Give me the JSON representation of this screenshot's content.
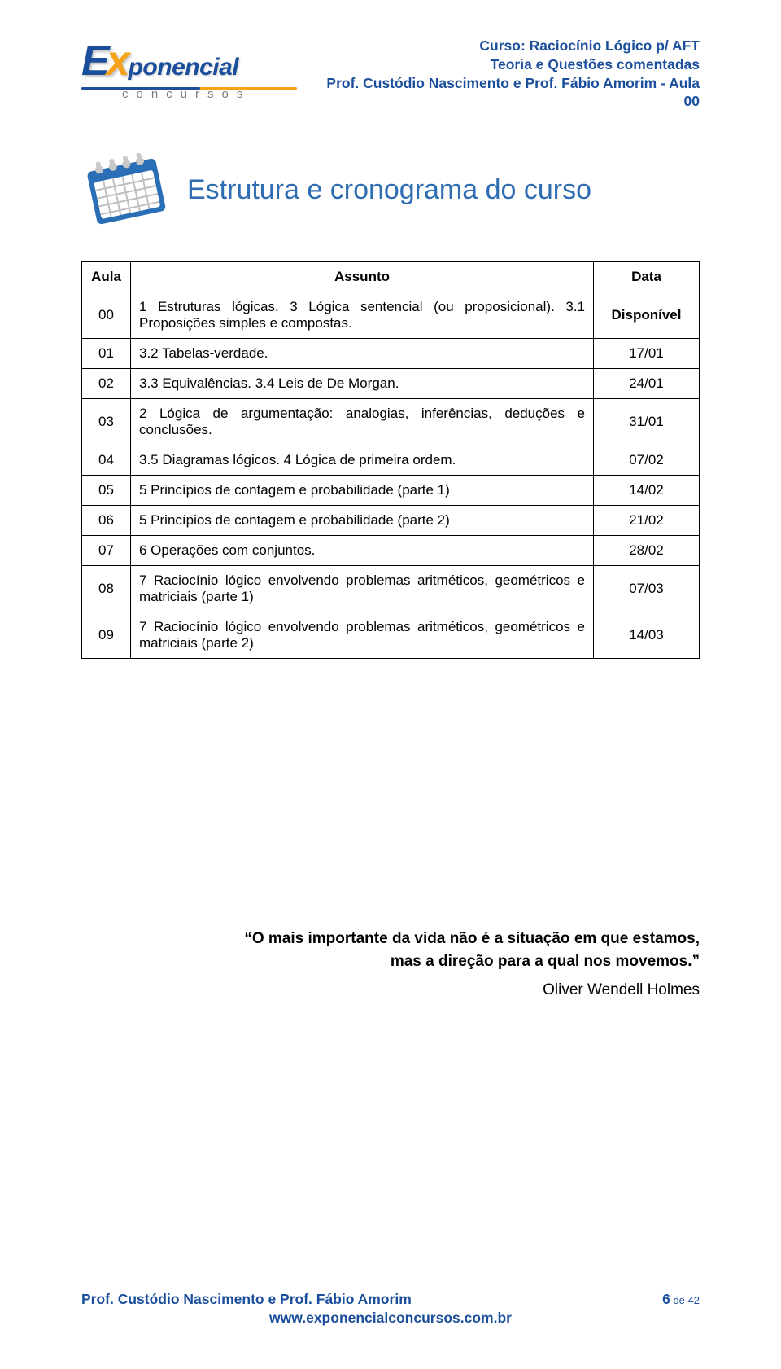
{
  "header": {
    "logo": {
      "e": "E",
      "x": "x",
      "rest": "ponencial",
      "sub": "concursos"
    },
    "course_line1": "Curso: Raciocínio Lógico p/ AFT",
    "course_line2": "Teoria e Questões comentadas",
    "course_line3": "Prof. Custódio Nascimento e Prof. Fábio Amorim - Aula 00"
  },
  "section": {
    "title": "Estrutura e cronograma do curso"
  },
  "table": {
    "headers": {
      "aula": "Aula",
      "assunto": "Assunto",
      "data": "Data"
    },
    "rows": [
      {
        "num": "00",
        "subject": "1 Estruturas lógicas. 3 Lógica sentencial (ou proposicional). 3.1 Proposições simples e compostas.",
        "date": "Disponível",
        "date_bold": true,
        "subject_justify": true
      },
      {
        "num": "01",
        "subject": "3.2 Tabelas-verdade.",
        "date": "17/01"
      },
      {
        "num": "02",
        "subject": "3.3 Equivalências. 3.4 Leis de De Morgan.",
        "date": "24/01"
      },
      {
        "num": "03",
        "subject": "2 Lógica de argumentação: analogias, inferências, deduções e conclusões.",
        "date": "31/01",
        "subject_justify": true
      },
      {
        "num": "04",
        "subject": "3.5 Diagramas lógicos. 4 Lógica de primeira ordem.",
        "date": "07/02"
      },
      {
        "num": "05",
        "subject": "5 Princípios de contagem e probabilidade (parte 1)",
        "date": "14/02"
      },
      {
        "num": "06",
        "subject": "5 Princípios de contagem e probabilidade (parte 2)",
        "date": "21/02"
      },
      {
        "num": "07",
        "subject": "6 Operações com conjuntos.",
        "date": "28/02"
      },
      {
        "num": "08",
        "subject": "7 Raciocínio lógico envolvendo problemas aritméticos, geométricos e matriciais (parte 1)",
        "date": "07/03",
        "subject_justify": true
      },
      {
        "num": "09",
        "subject": "7 Raciocínio lógico envolvendo problemas aritméticos, geométricos e matriciais (parte 2)",
        "date": "14/03",
        "subject_justify": true
      }
    ]
  },
  "quote": {
    "line1": "“O mais importante da vida não é a situação em que estamos,",
    "line2": "mas a direção para a qual nos movemos.”",
    "author": "Oliver Wendell Holmes"
  },
  "footer": {
    "prof": "Prof. Custódio Nascimento e Prof. Fábio Amorim",
    "page_current": "6",
    "page_of": " de ",
    "page_total": "42",
    "url": "www.exponencialconcursos.com.br"
  },
  "colors": {
    "brand_blue": "#1b4f9c",
    "brand_orange": "#f6a31b",
    "title_blue": "#2f6db3",
    "cal_blue": "#2a6fb5",
    "cal_ring": "#c9c9c9",
    "cal_paper": "#ffffff",
    "cal_grid": "#bfbfbf"
  }
}
